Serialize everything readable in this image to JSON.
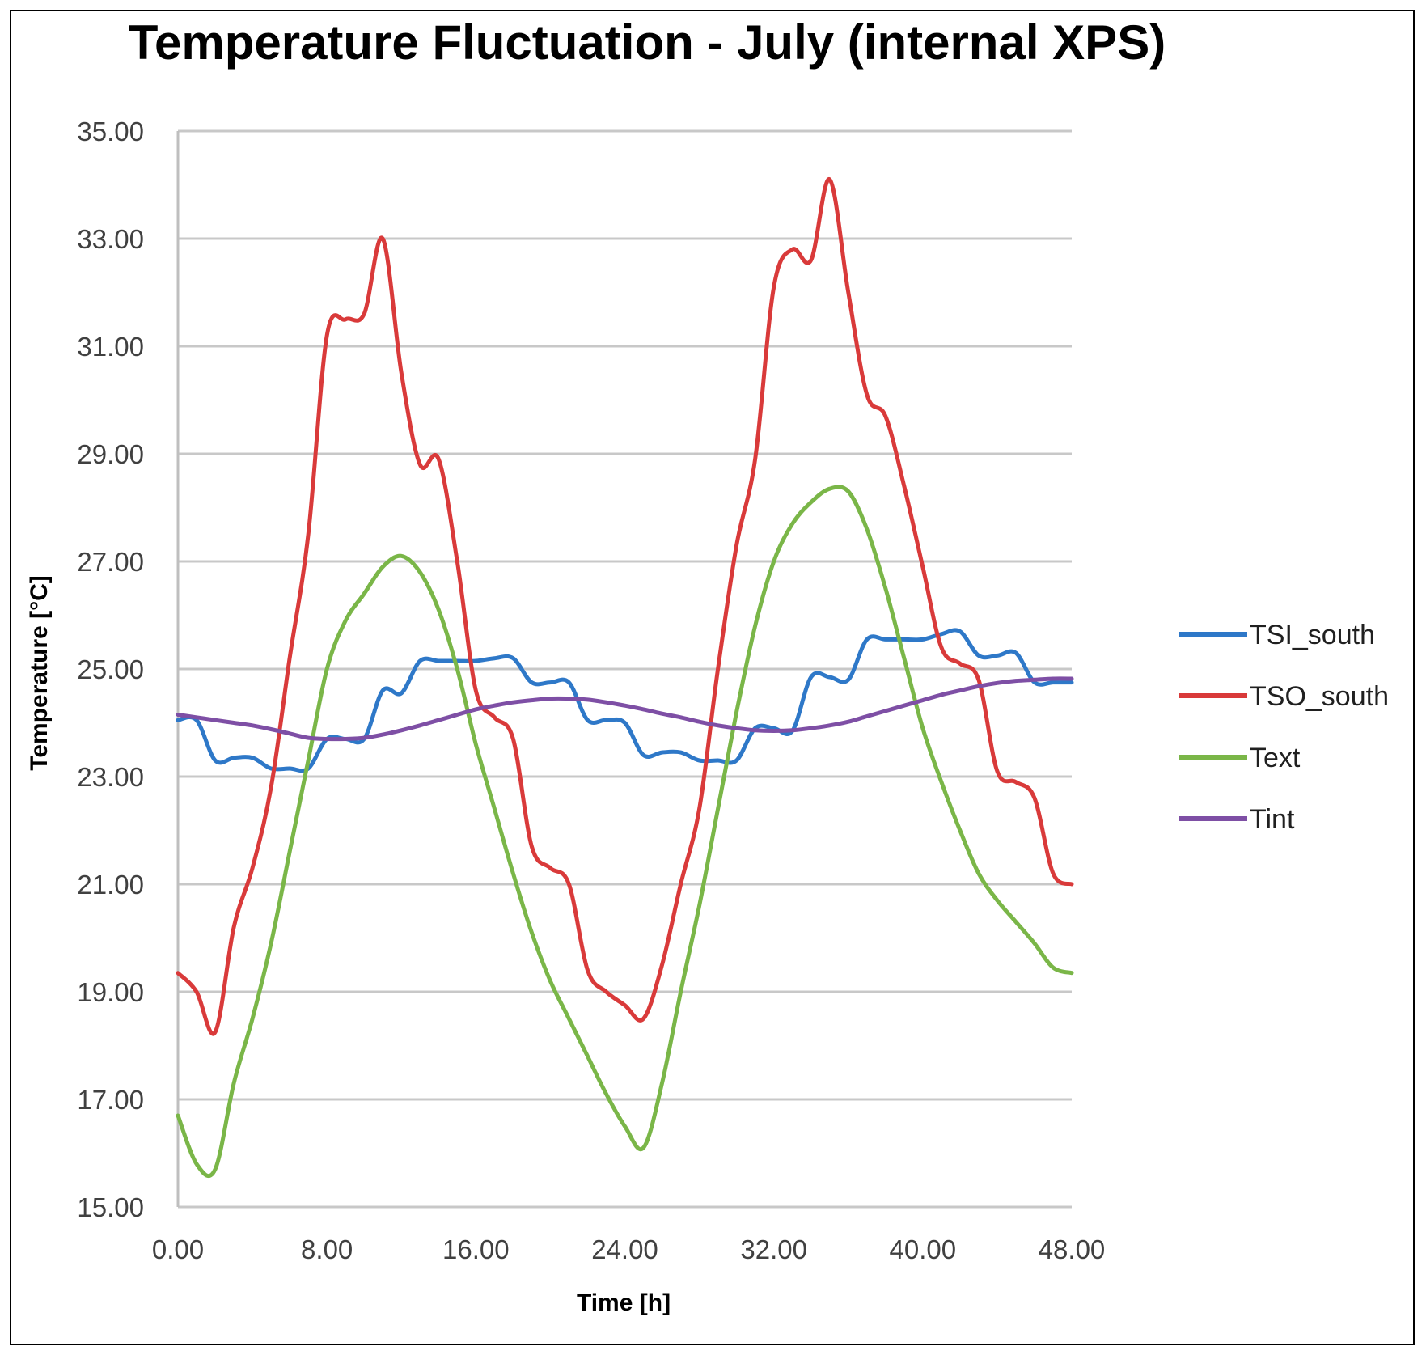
{
  "chart_data": {
    "type": "line",
    "title": "Temperature Fluctuation - July (internal XPS)",
    "xlabel": "Time [h]",
    "ylabel": "Temperature [°C]",
    "xlim": [
      0,
      48
    ],
    "ylim": [
      15,
      35
    ],
    "xticks": [
      0,
      8,
      16,
      24,
      32,
      40,
      48
    ],
    "xtick_labels": [
      "0.00",
      "8.00",
      "16.00",
      "24.00",
      "32.00",
      "40.00",
      "48.00"
    ],
    "yticks": [
      15,
      17,
      19,
      21,
      23,
      25,
      27,
      29,
      31,
      33,
      35
    ],
    "ytick_labels": [
      "15.00",
      "17.00",
      "19.00",
      "21.00",
      "23.00",
      "25.00",
      "27.00",
      "29.00",
      "31.00",
      "33.00",
      "35.00"
    ],
    "grid": "horizontal",
    "legend_position": "right",
    "x": [
      0,
      1,
      2,
      3,
      4,
      5,
      6,
      7,
      8,
      9,
      10,
      11,
      12,
      13,
      14,
      15,
      16,
      17,
      18,
      19,
      20,
      21,
      22,
      23,
      24,
      25,
      26,
      27,
      28,
      29,
      30,
      31,
      32,
      33,
      34,
      35,
      36,
      37,
      38,
      39,
      40,
      41,
      42,
      43,
      44,
      45,
      46,
      47,
      48
    ],
    "series": [
      {
        "name": "TSI_south",
        "color": "#2e78c8",
        "values": [
          24.05,
          24.05,
          23.3,
          23.35,
          23.35,
          23.15,
          23.15,
          23.15,
          23.7,
          23.7,
          23.7,
          24.6,
          24.55,
          25.15,
          25.15,
          25.15,
          25.15,
          25.2,
          25.2,
          24.75,
          24.75,
          24.75,
          24.05,
          24.05,
          24.0,
          23.4,
          23.45,
          23.45,
          23.3,
          23.3,
          23.3,
          23.9,
          23.9,
          23.85,
          24.85,
          24.85,
          24.8,
          25.55,
          25.55,
          25.55,
          25.55,
          25.65,
          25.7,
          25.25,
          25.25,
          25.3,
          24.75,
          24.75,
          24.75
        ]
      },
      {
        "name": "TSO_south",
        "color": "#d93a3a",
        "values": [
          19.35,
          19.0,
          18.25,
          20.2,
          21.3,
          22.8,
          25.2,
          27.5,
          31.2,
          31.5,
          31.6,
          33.0,
          30.5,
          28.8,
          28.9,
          27.0,
          24.6,
          24.1,
          23.7,
          21.7,
          21.3,
          21.0,
          19.4,
          19.0,
          18.75,
          18.5,
          19.5,
          21.0,
          22.4,
          25.0,
          27.3,
          28.9,
          32.1,
          32.8,
          32.6,
          34.1,
          32.0,
          30.1,
          29.7,
          28.4,
          26.9,
          25.4,
          25.1,
          24.8,
          23.1,
          22.9,
          22.6,
          21.2,
          21.0
        ]
      },
      {
        "name": "Text",
        "color": "#7ab648",
        "values": [
          16.7,
          15.8,
          15.7,
          17.3,
          18.5,
          19.9,
          21.6,
          23.3,
          25.0,
          25.9,
          26.4,
          26.9,
          27.1,
          26.8,
          26.1,
          25.0,
          23.6,
          22.4,
          21.2,
          20.1,
          19.2,
          18.5,
          17.8,
          17.1,
          16.5,
          16.1,
          17.3,
          19.0,
          20.6,
          22.4,
          24.2,
          25.8,
          27.0,
          27.7,
          28.1,
          28.35,
          28.3,
          27.6,
          26.5,
          25.2,
          23.9,
          22.9,
          22.0,
          21.2,
          20.7,
          20.3,
          19.9,
          19.45,
          19.35
        ]
      },
      {
        "name": "Tint",
        "color": "#7e4fa5",
        "values": [
          24.15,
          24.1,
          24.05,
          24.0,
          23.95,
          23.88,
          23.8,
          23.72,
          23.7,
          23.7,
          23.72,
          23.78,
          23.86,
          23.95,
          24.05,
          24.15,
          24.25,
          24.32,
          24.38,
          24.42,
          24.45,
          24.45,
          24.43,
          24.38,
          24.32,
          24.25,
          24.17,
          24.1,
          24.02,
          23.95,
          23.9,
          23.86,
          23.85,
          23.86,
          23.9,
          23.95,
          24.02,
          24.12,
          24.22,
          24.32,
          24.42,
          24.52,
          24.6,
          24.68,
          24.74,
          24.78,
          24.8,
          24.82,
          24.82
        ]
      }
    ]
  }
}
